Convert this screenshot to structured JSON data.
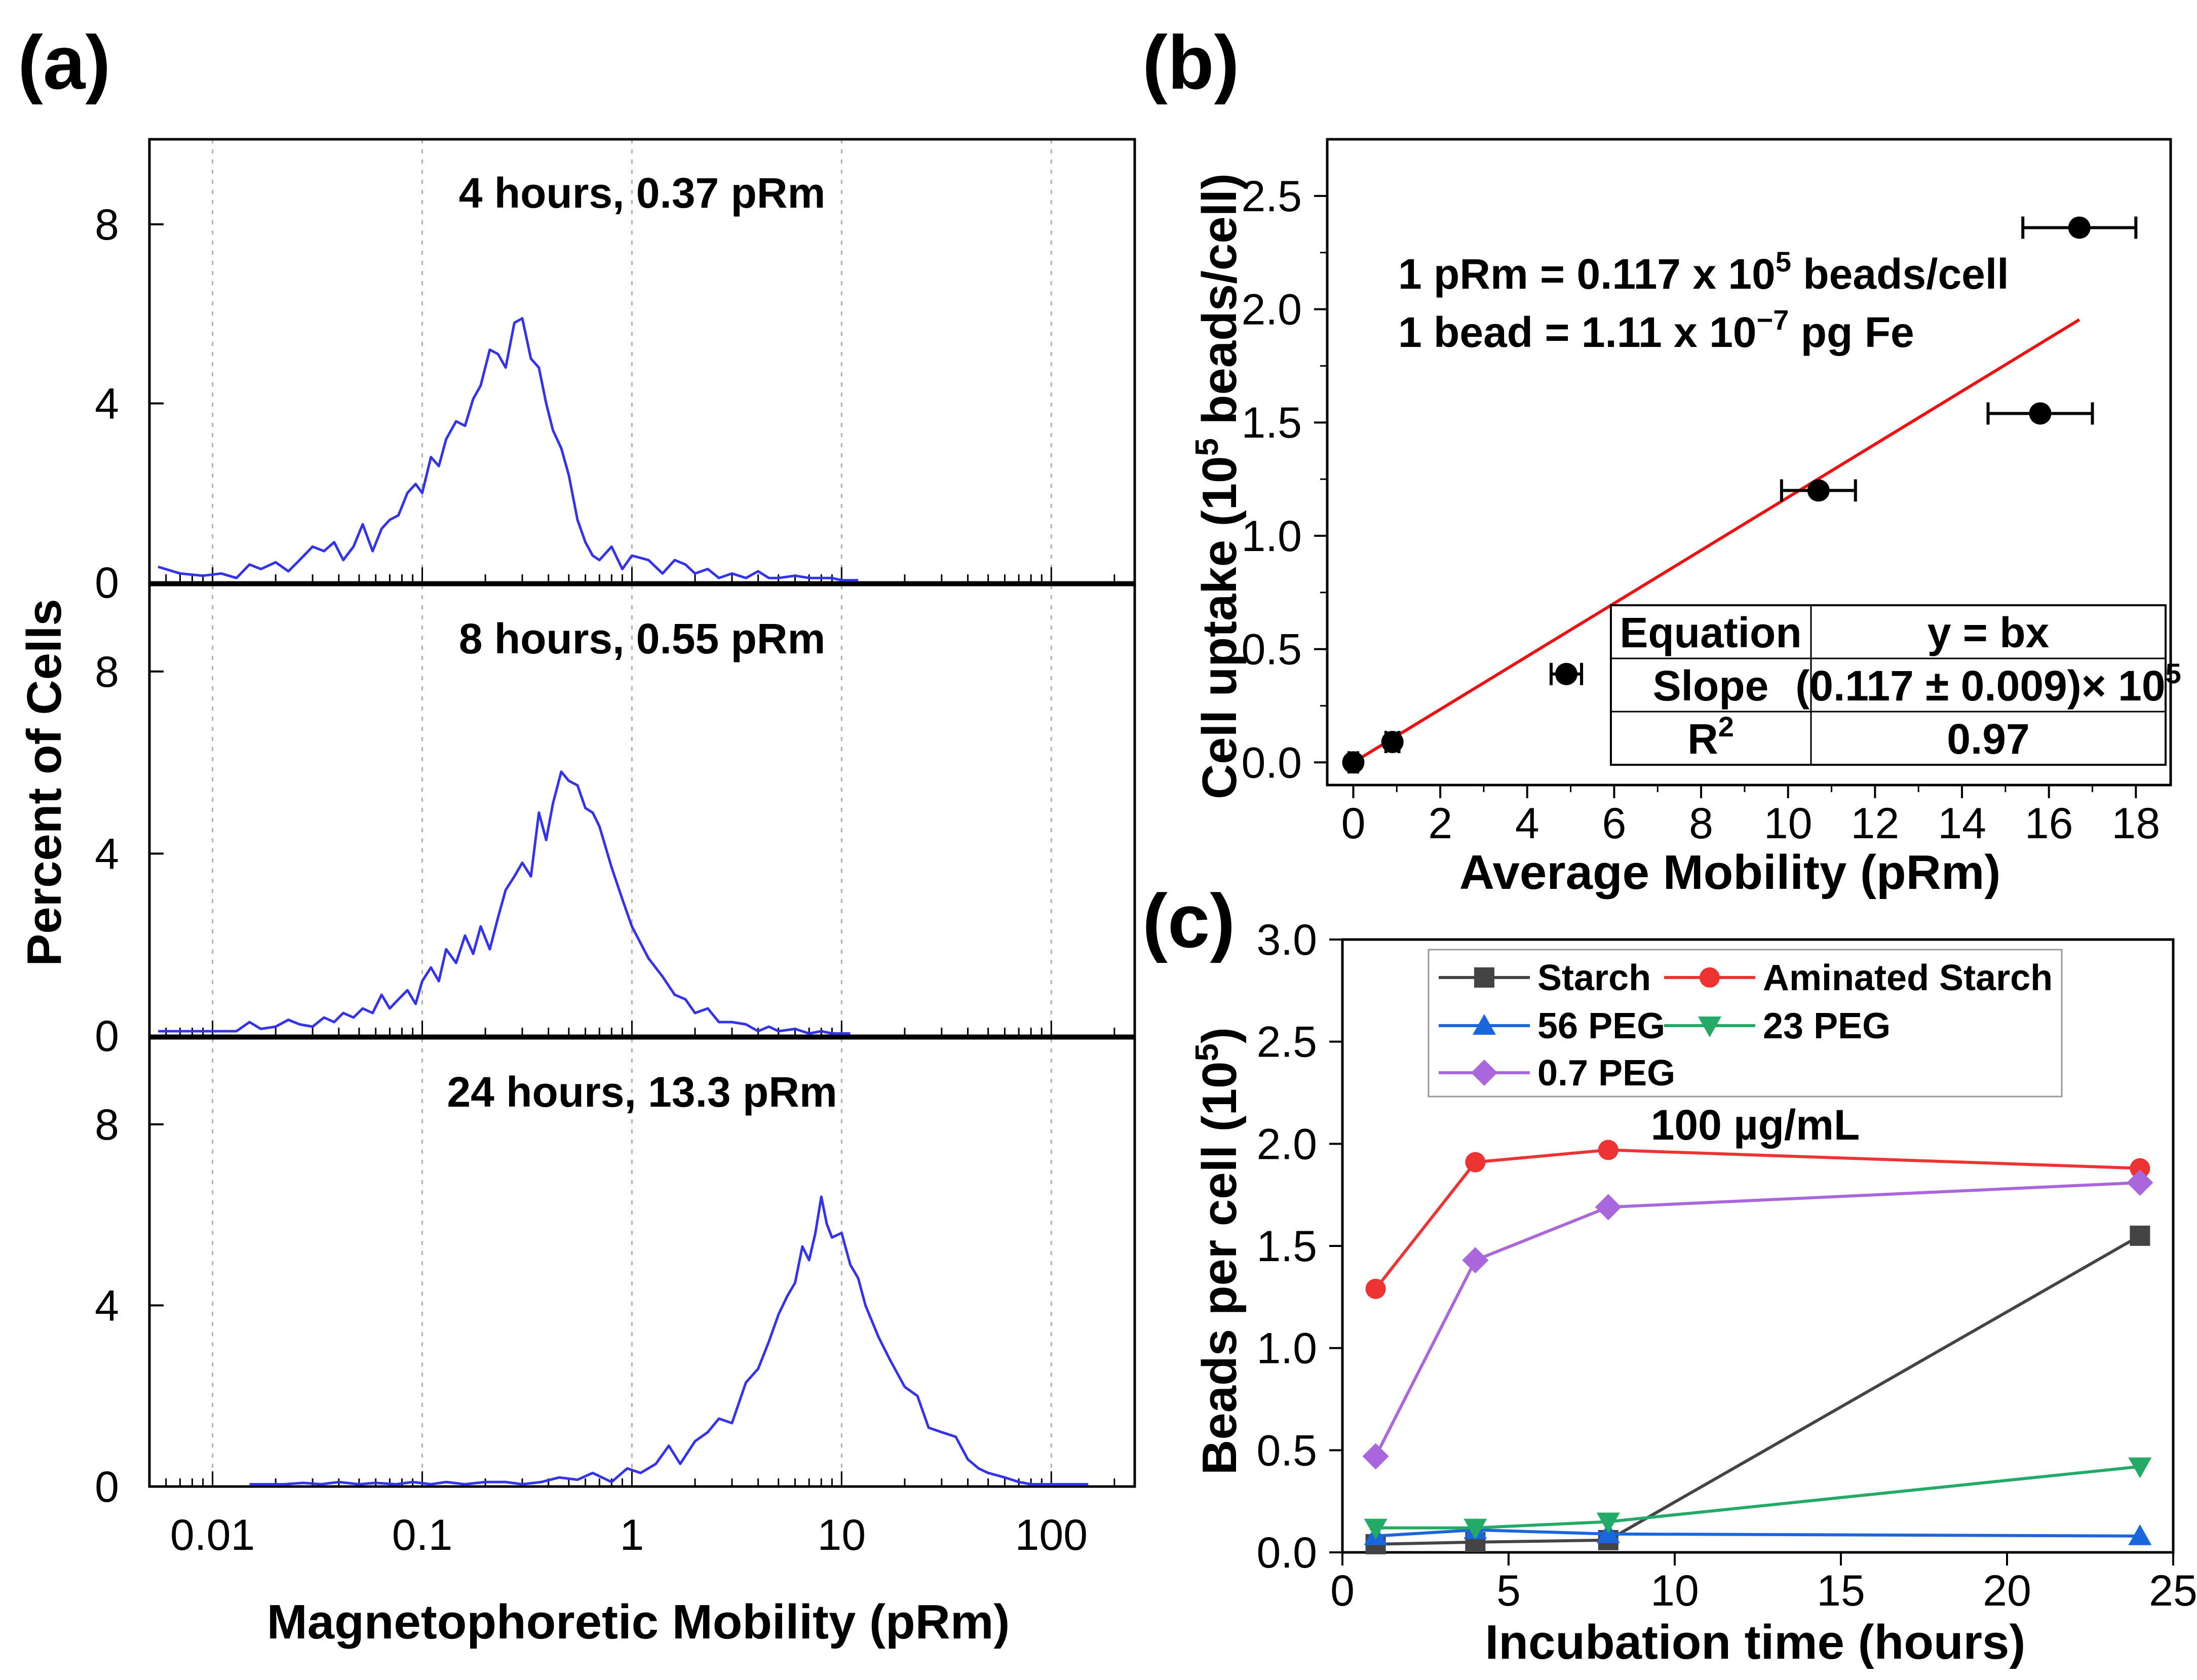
{
  "panel_labels": [
    "(a)",
    "(b)",
    "(c)"
  ],
  "colors": {
    "histogram": "#3333ee",
    "fit_line": "#ee1111",
    "points": "#000000",
    "frame": "#000000",
    "grid": "#b0b0b0"
  },
  "chart_data": [
    {
      "type": "line",
      "panel": "(a)",
      "xscale": "log",
      "xlim": [
        0.005,
        250
      ],
      "xticks": [
        0.01,
        0.1,
        1,
        10,
        100
      ],
      "xtick_labels": [
        "0.01",
        "0.1",
        "1",
        "10",
        "100"
      ],
      "ylim": [
        0,
        9.9
      ],
      "yticks": [
        0,
        4,
        8
      ],
      "ytick_labels": [
        "0",
        "4",
        "8"
      ],
      "xlabel": "Magnetophoretic Mobility (pRm)",
      "ylabel": "Percent of Cells",
      "grid": "vertical dotted at decades",
      "subplots": [
        {
          "title": "4 hours, 0.37 pRm",
          "series": [
            {
              "name": "4 hours",
              "x": [
                0.0055,
                0.007,
                0.009,
                0.011,
                0.013,
                0.015,
                0.017,
                0.02,
                0.023,
                0.026,
                0.03,
                0.034,
                0.038,
                0.042,
                0.047,
                0.052,
                0.058,
                0.064,
                0.07,
                0.077,
                0.085,
                0.093,
                0.1,
                0.11,
                0.12,
                0.13,
                0.145,
                0.16,
                0.175,
                0.19,
                0.21,
                0.23,
                0.25,
                0.275,
                0.3,
                0.33,
                0.36,
                0.39,
                0.42,
                0.46,
                0.5,
                0.55,
                0.6,
                0.65,
                0.7,
                0.8,
                0.9,
                1.0,
                1.2,
                1.4,
                1.6,
                1.8,
                2.0,
                2.3,
                2.6,
                3.0,
                3.5,
                4.0,
                4.5,
                5.0,
                6.0,
                7.0,
                8.0,
                9.0,
                10.0,
                12.0
              ],
              "values": [
                0.35,
                0.2,
                0.15,
                0.2,
                0.1,
                0.4,
                0.3,
                0.45,
                0.25,
                0.5,
                0.8,
                0.7,
                0.9,
                0.5,
                0.8,
                1.3,
                0.7,
                1.2,
                1.4,
                1.5,
                2.0,
                2.2,
                2.0,
                2.8,
                2.6,
                3.2,
                3.6,
                3.5,
                4.1,
                4.4,
                5.2,
                5.1,
                4.8,
                5.8,
                5.9,
                5.0,
                4.8,
                4.0,
                3.4,
                3.0,
                2.4,
                1.4,
                0.9,
                0.6,
                0.5,
                0.8,
                0.3,
                0.6,
                0.5,
                0.2,
                0.5,
                0.4,
                0.2,
                0.3,
                0.1,
                0.2,
                0.1,
                0.25,
                0.1,
                0.1,
                0.15,
                0.1,
                0.1,
                0.1,
                0.05,
                0.05
              ]
            }
          ]
        },
        {
          "title": "8 hours, 0.55 pRm",
          "series": [
            {
              "name": "8 hours",
              "x": [
                0.0055,
                0.007,
                0.009,
                0.011,
                0.013,
                0.015,
                0.017,
                0.02,
                0.023,
                0.026,
                0.03,
                0.034,
                0.038,
                0.042,
                0.047,
                0.052,
                0.058,
                0.064,
                0.07,
                0.077,
                0.085,
                0.093,
                0.1,
                0.11,
                0.12,
                0.13,
                0.145,
                0.16,
                0.175,
                0.19,
                0.21,
                0.23,
                0.25,
                0.275,
                0.3,
                0.33,
                0.36,
                0.39,
                0.42,
                0.46,
                0.5,
                0.55,
                0.6,
                0.65,
                0.7,
                0.8,
                0.9,
                1.0,
                1.2,
                1.4,
                1.6,
                1.8,
                2.0,
                2.3,
                2.6,
                3.0,
                3.5,
                4.0,
                4.5,
                5.0,
                6.0,
                7.0,
                8.0,
                9.0,
                10.0,
                11.0
              ],
              "values": [
                0.1,
                0.1,
                0.1,
                0.1,
                0.1,
                0.3,
                0.15,
                0.2,
                0.35,
                0.25,
                0.2,
                0.4,
                0.3,
                0.5,
                0.4,
                0.6,
                0.5,
                0.9,
                0.6,
                0.8,
                1.0,
                0.7,
                1.2,
                1.5,
                1.2,
                1.9,
                1.6,
                2.2,
                1.8,
                2.4,
                1.9,
                2.6,
                3.2,
                3.5,
                3.8,
                3.5,
                4.9,
                4.3,
                5.1,
                5.8,
                5.6,
                5.5,
                5.0,
                4.9,
                4.6,
                3.7,
                3.0,
                2.4,
                1.7,
                1.3,
                0.9,
                0.8,
                0.5,
                0.6,
                0.3,
                0.3,
                0.25,
                0.1,
                0.2,
                0.1,
                0.15,
                0.05,
                0.1,
                0.05,
                0.05,
                0.05
              ]
            }
          ]
        },
        {
          "title": "24 hours, 13.3 pRm",
          "series": [
            {
              "name": "24 hours",
              "x": [
                0.015,
                0.018,
                0.022,
                0.027,
                0.033,
                0.04,
                0.05,
                0.06,
                0.075,
                0.09,
                0.11,
                0.13,
                0.16,
                0.2,
                0.25,
                0.3,
                0.37,
                0.45,
                0.55,
                0.65,
                0.8,
                0.95,
                1.1,
                1.3,
                1.5,
                1.7,
                2.0,
                2.3,
                2.6,
                3.0,
                3.5,
                4.0,
                4.5,
                5.0,
                5.5,
                6.0,
                6.5,
                7.0,
                7.5,
                8.0,
                8.5,
                9.0,
                10.0,
                11.0,
                12.0,
                13.0,
                15.0,
                17.0,
                20.0,
                23.0,
                26.0,
                30.0,
                35.0,
                40.0,
                45.0,
                50.0,
                60.0,
                70.0,
                80.0,
                90.0,
                100.0,
                120.0,
                150.0
              ],
              "values": [
                0.05,
                0.05,
                0.05,
                0.08,
                0.05,
                0.1,
                0.05,
                0.08,
                0.05,
                0.1,
                0.05,
                0.1,
                0.05,
                0.1,
                0.1,
                0.05,
                0.1,
                0.2,
                0.15,
                0.3,
                0.1,
                0.4,
                0.3,
                0.5,
                0.9,
                0.5,
                1.0,
                1.2,
                1.5,
                1.4,
                2.3,
                2.6,
                3.2,
                3.8,
                4.2,
                4.5,
                5.3,
                5.0,
                5.6,
                6.4,
                5.8,
                5.5,
                5.6,
                4.9,
                4.6,
                4.0,
                3.3,
                2.8,
                2.2,
                2.0,
                1.3,
                1.2,
                1.1,
                0.6,
                0.4,
                0.3,
                0.2,
                0.1,
                0.05,
                0.05,
                0.05,
                0.05,
                0.05
              ]
            }
          ]
        }
      ]
    },
    {
      "type": "scatter",
      "panel": "(b)",
      "xlabel": "Average Mobility (pRm)",
      "ylabel": "Cell uptake (10^5 beads/cell)",
      "ylabel_parts": {
        "pre": "Cell uptake (10",
        "sup": "5",
        "post": " beads/cell)"
      },
      "xlim": [
        -0.6,
        18.8
      ],
      "ylim": [
        -0.1,
        2.75
      ],
      "xticks": [
        0,
        2,
        4,
        6,
        8,
        10,
        12,
        14,
        16,
        18
      ],
      "xtick_labels": [
        "0",
        "2",
        "4",
        "6",
        "8",
        "10",
        "12",
        "14",
        "16",
        "18"
      ],
      "yticks": [
        0.0,
        0.5,
        1.0,
        1.5,
        2.0,
        2.5
      ],
      "ytick_labels": [
        "0.0",
        "0.5",
        "1.0",
        "1.5",
        "2.0",
        "2.5"
      ],
      "series": [
        {
          "name": "Uptake",
          "x": [
            0.0,
            0.9,
            4.9,
            10.7,
            15.8,
            16.7
          ],
          "y": [
            0.0,
            0.09,
            0.39,
            1.2,
            1.54,
            2.36
          ],
          "xerr": [
            0.1,
            0.15,
            0.35,
            0.85,
            1.2,
            1.3
          ]
        }
      ],
      "fit": {
        "slope": 0.117,
        "x_range": [
          0,
          16.7
        ],
        "color": "#ee1111"
      },
      "annotations": {
        "line1": {
          "pre": "1 pRm = 0.117 x 10",
          "sup": "5",
          "post": " beads/cell"
        },
        "line2": {
          "pre": "1 bead = 1.11 x 10",
          "sup": "−7",
          "post": " pg Fe"
        }
      },
      "table": {
        "rows": [
          {
            "label": "Equation",
            "value": "y = bx"
          },
          {
            "label": "Slope",
            "value": "(0.117 ± 0.009)× 10",
            "value_sup": "5"
          },
          {
            "label": "R",
            "label_sup": "2",
            "value": "0.97"
          }
        ]
      }
    },
    {
      "type": "line",
      "panel": "(c)",
      "xlabel": "Incubation time (hours)",
      "ylabel": "Beads per cell (10^5)",
      "ylabel_parts": {
        "pre": "Beads per cell (10",
        "sup": "5",
        "post": ")"
      },
      "xlim": [
        0,
        25
      ],
      "ylim": [
        0,
        3.0
      ],
      "xticks": [
        0,
        5,
        10,
        15,
        20,
        25
      ],
      "xtick_labels": [
        "0",
        "5",
        "10",
        "15",
        "20",
        "25"
      ],
      "yticks": [
        0.0,
        0.5,
        1.0,
        1.5,
        2.0,
        2.5,
        3.0
      ],
      "ytick_labels": [
        "0.0",
        "0.5",
        "1.0",
        "1.5",
        "2.0",
        "2.5",
        "3.0"
      ],
      "annotation": "100 µg/mL",
      "legend_position": "top",
      "x": [
        1,
        4,
        8,
        24
      ],
      "series": [
        {
          "name": "Starch",
          "marker": "square",
          "color": "#444444",
          "values": [
            0.04,
            0.05,
            0.06,
            1.55
          ]
        },
        {
          "name": "Aminated Starch",
          "marker": "circle",
          "color": "#ee3333",
          "values": [
            1.29,
            1.91,
            1.97,
            1.88
          ]
        },
        {
          "name": "56 PEG",
          "marker": "triangle-up",
          "color": "#1a66dd",
          "values": [
            0.08,
            0.11,
            0.09,
            0.08
          ]
        },
        {
          "name": "23 PEG",
          "marker": "triangle-down",
          "color": "#22aa66",
          "values": [
            0.12,
            0.12,
            0.15,
            0.42
          ]
        },
        {
          "name": "0.7 PEG",
          "marker": "diamond",
          "color": "#aa66dd",
          "values": [
            0.47,
            1.43,
            1.69,
            1.81
          ]
        }
      ]
    }
  ]
}
